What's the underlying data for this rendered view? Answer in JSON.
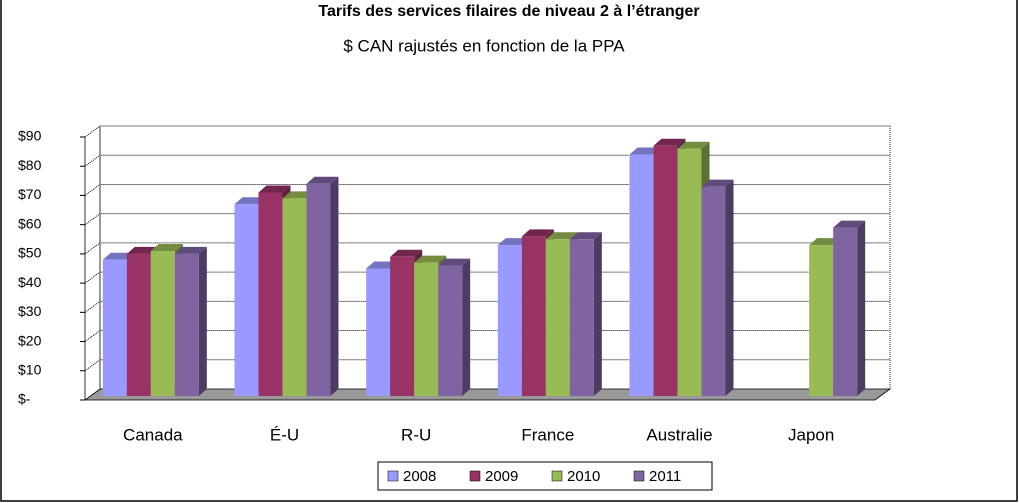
{
  "chart_data": {
    "type": "bar3d",
    "title": "Tarifs des services filaires de niveau 2 à l’étranger",
    "subtitle": "$ CAN rajustés en fonction de la PPA",
    "categories": [
      "Canada",
      "É-U",
      "R-U",
      "France",
      "Australie",
      "Japon"
    ],
    "series": [
      {
        "name": "2008",
        "color": "#9999ff",
        "values": [
          48,
          67,
          45,
          53,
          84,
          null
        ]
      },
      {
        "name": "2009",
        "color": "#993366",
        "values": [
          50,
          71,
          49,
          56,
          87,
          null
        ]
      },
      {
        "name": "2010",
        "color": "#99bb55",
        "values": [
          51,
          69,
          47,
          55,
          86,
          53
        ]
      },
      {
        "name": "2011",
        "color": "#8064a2",
        "values": [
          50,
          74,
          46,
          55,
          73,
          59
        ]
      }
    ],
    "ylim": [
      0,
      90
    ],
    "yticks": [
      {
        "value": 0,
        "label": "$-"
      },
      {
        "value": 10,
        "label": "$10"
      },
      {
        "value": 20,
        "label": "$20"
      },
      {
        "value": 30,
        "label": "$30"
      },
      {
        "value": 40,
        "label": "$40"
      },
      {
        "value": 50,
        "label": "$50"
      },
      {
        "value": 60,
        "label": "$60"
      },
      {
        "value": 70,
        "label": "$70"
      },
      {
        "value": 80,
        "label": "$80"
      },
      {
        "value": 90,
        "label": "$90"
      }
    ],
    "grid": true,
    "legend": "bottom"
  }
}
